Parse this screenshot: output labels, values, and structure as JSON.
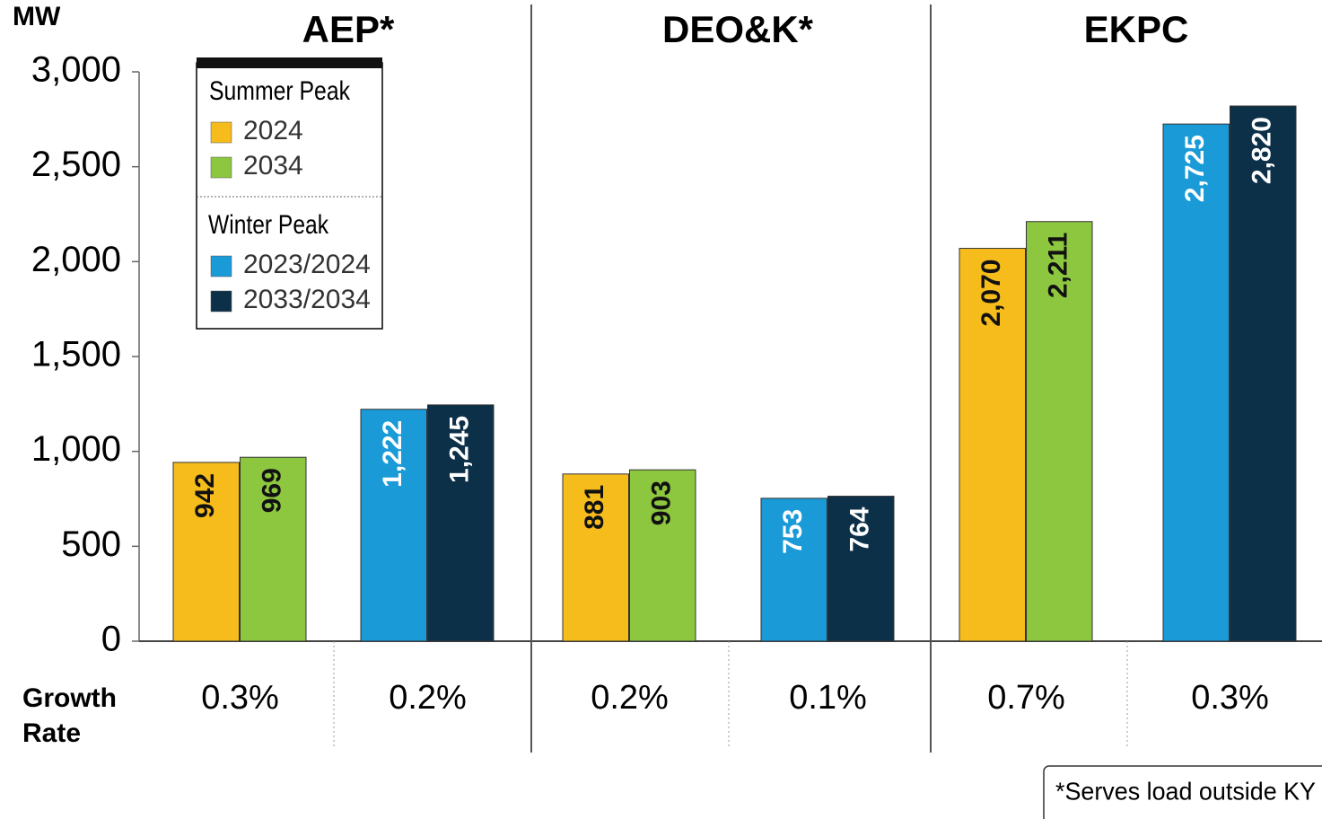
{
  "chart_data": {
    "type": "bar",
    "y_label": "MW",
    "categories": [
      "AEP*",
      "DEO&K*",
      "EKPC"
    ],
    "legend_groups": [
      "Summer Peak",
      "Winter Peak"
    ],
    "series": [
      {
        "name": "2024",
        "group": 0,
        "color": "#f5bc1c",
        "values": [
          942,
          881,
          2070
        ],
        "value_labels": [
          "942",
          "881",
          "2,070"
        ]
      },
      {
        "name": "2034",
        "group": 0,
        "color": "#8dc63f",
        "values": [
          969,
          903,
          2211
        ],
        "value_labels": [
          "969",
          "903",
          "2,211"
        ]
      },
      {
        "name": "2023/2024",
        "group": 1,
        "color": "#1a9ad6",
        "values": [
          1222,
          753,
          2725
        ],
        "value_labels": [
          "1,222",
          "753",
          "2,725"
        ]
      },
      {
        "name": "2033/2034",
        "group": 1,
        "color": "#0d3049",
        "values": [
          1245,
          764,
          2820
        ],
        "value_labels": [
          "1,245",
          "764",
          "2,820"
        ]
      }
    ],
    "growth_label": [
      "Growth",
      "Rate"
    ],
    "growth_rates": [
      [
        "0.3%",
        "0.2%"
      ],
      [
        "0.2%",
        "0.1%"
      ],
      [
        "0.7%",
        "0.3%"
      ]
    ],
    "ylim": [
      0,
      3000
    ],
    "yticks": [
      0,
      500,
      {
        "value": 1000,
        "label": "1,000"
      },
      {
        "value": 1500,
        "label": "1,500"
      },
      {
        "value": 2000,
        "label": "2,000"
      },
      {
        "value": 2500,
        "label": "2,500"
      },
      {
        "value": 3000,
        "label": "3,000"
      }
    ],
    "note": "*Serves load outside KY"
  }
}
